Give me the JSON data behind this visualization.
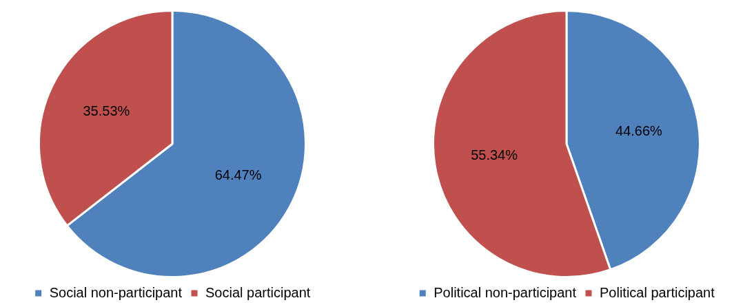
{
  "chart_data": [
    {
      "type": "pie",
      "categories": [
        "Social non-participant",
        "Social participant"
      ],
      "values": [
        64.47,
        35.53
      ],
      "colors": [
        "#4f81bd",
        "#c0504d"
      ],
      "value_labels": [
        "64.47%",
        "35.53%"
      ],
      "legend": "bottom"
    },
    {
      "type": "pie",
      "categories": [
        "Political non-participant",
        "Political participant"
      ],
      "values": [
        44.66,
        55.34
      ],
      "colors": [
        "#4f81bd",
        "#c0504d"
      ],
      "value_labels": [
        "44.66%",
        "55.34%"
      ],
      "legend": "bottom"
    }
  ]
}
